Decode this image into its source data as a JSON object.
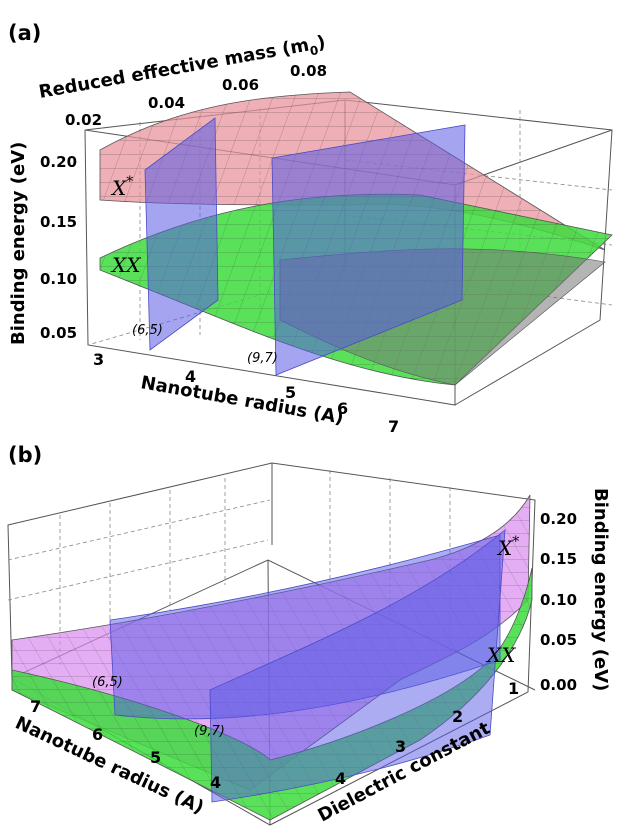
{
  "chart_data": [
    {
      "type": "surface3d",
      "panel_label": "(a)",
      "xlabel": "Nanotube radius (A)",
      "x_ticks": [
        "3",
        "4",
        "5",
        "6",
        "7"
      ],
      "top_axis_label_main": "Reduced effective mass (m",
      "top_axis_label_sub": "0",
      "top_axis_label_close": ")",
      "top_ticks": [
        "0.02",
        "0.04",
        "0.06",
        "0.08"
      ],
      "zlabel": "Binding energy (eV)",
      "z_ticks": [
        "0.05",
        "0.10",
        "0.15",
        "0.20"
      ],
      "xlim": [
        3,
        7.5
      ],
      "zlim": [
        0.04,
        0.22
      ],
      "surfaces": [
        {
          "name": "X*",
          "label_main": "X",
          "label_sup": "*",
          "color": "#e8909a"
        },
        {
          "name": "XX",
          "label_main": "XX",
          "label_sup": "",
          "color": "#3ddc3d"
        }
      ],
      "planes": [
        {
          "label": "(6,5)",
          "radius": 3.78,
          "color": "#5a5ae6"
        },
        {
          "label": "(9,7)",
          "radius": 5.44,
          "color": "#5a5ae6"
        }
      ]
    },
    {
      "type": "surface3d",
      "panel_label": "(b)",
      "xlabel": "Nanotube radius (A)",
      "x_ticks": [
        "7",
        "6",
        "5",
        "4"
      ],
      "ylabel": "Dielectric constant",
      "y_ticks": [
        "4",
        "3",
        "2",
        "1"
      ],
      "zlabel": "Binding energy (eV)",
      "z_ticks": [
        "0.00",
        "0.05",
        "0.10",
        "0.15",
        "0.20"
      ],
      "zlim": [
        0.0,
        0.22
      ],
      "surfaces": [
        {
          "name": "X*",
          "label_main": "X",
          "label_sup": "*",
          "color": "#d98af0"
        },
        {
          "name": "XX",
          "label_main": "XX",
          "label_sup": "",
          "color": "#3ddc3d"
        }
      ],
      "planes": [
        {
          "label": "(6,5)",
          "radius": 3.78,
          "color": "#5a5ae6"
        },
        {
          "label": "(9,7)",
          "radius": 5.44,
          "color": "#5a5ae6"
        }
      ]
    }
  ]
}
